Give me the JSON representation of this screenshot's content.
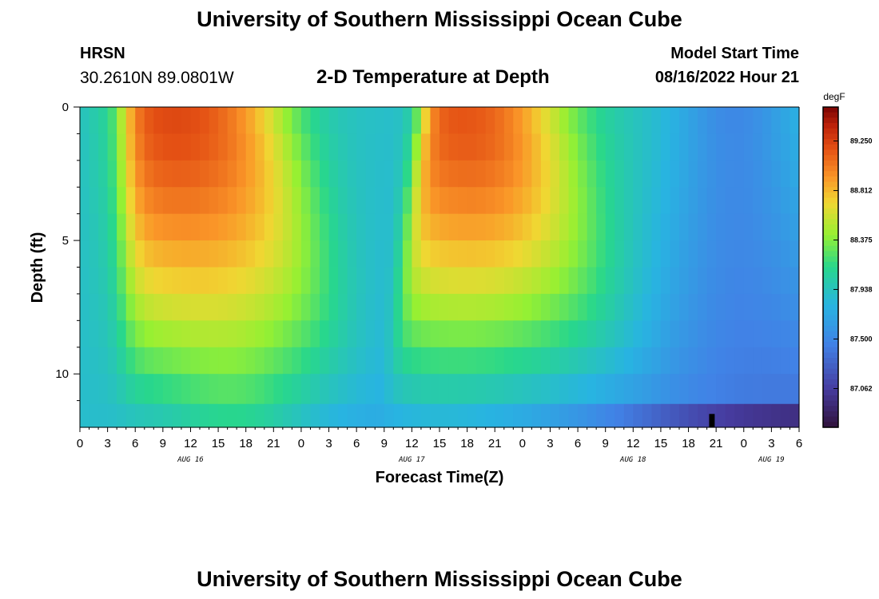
{
  "header": {
    "title": "University of Southern Mississippi Ocean Cube",
    "station": "HRSN",
    "coordinates": "30.2610N  89.0801W",
    "subtitle": "2-D Temperature at Depth",
    "model_start_label": "Model Start Time",
    "model_start_value": "08/16/2022 Hour 21"
  },
  "footer": {
    "title": "University of Southern Mississippi Ocean Cube"
  },
  "chart_data": {
    "type": "heatmap",
    "title": "2-D Temperature at Depth",
    "xlabel": "Forecast Time(Z)",
    "ylabel": "Depth (ft)",
    "x_ticks": [
      "0",
      "3",
      "6",
      "9",
      "12",
      "15",
      "18",
      "21",
      "0",
      "3",
      "6",
      "9",
      "12",
      "15",
      "18",
      "21",
      "0",
      "3",
      "6",
      "9",
      "12",
      "15",
      "18",
      "21",
      "0",
      "3",
      "6"
    ],
    "date_labels": [
      {
        "label": "AUG 16",
        "hour_index": 12
      },
      {
        "label": "AUG 17",
        "hour_index": 36
      },
      {
        "label": "AUG 18",
        "hour_index": 60
      },
      {
        "label": "AUG 19",
        "hour_index": 75
      }
    ],
    "x_range_hours": [
      0,
      78
    ],
    "y_ticks": [
      "0",
      "5",
      "10"
    ],
    "y_range_ft": [
      0,
      12
    ],
    "depth_levels_ft": [
      0.5,
      1.5,
      2.5,
      3.5,
      4.5,
      5.5,
      6.5,
      7.5,
      8.5,
      9.5,
      10.5,
      11.75
    ],
    "colorbar": {
      "unit": "degF",
      "min": 86.72,
      "max": 89.55,
      "ticks": [
        "89.250",
        "88.812",
        "88.375",
        "87.938",
        "87.500",
        "87.062"
      ]
    },
    "missing_marker_hour": 68.5,
    "description_of_field": "Warm cores (~89.4 degF) near surface around 10Z Aug16 and 20Z Aug17; cool layer (~86.8 degF) at bottom late Aug18"
  }
}
